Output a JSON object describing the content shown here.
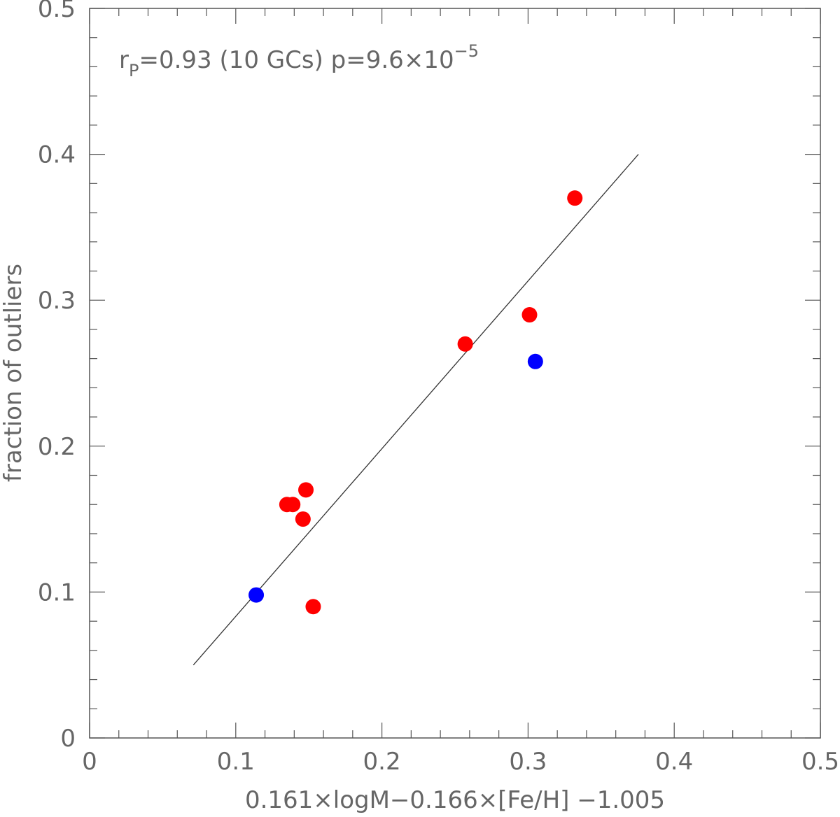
{
  "chart_data": {
    "type": "scatter",
    "xlabel": "0.161×logM−0.166×[Fe/H] −1.005",
    "ylabel": "fraction of outliers",
    "xlim": [
      0,
      0.5
    ],
    "ylim": [
      0,
      0.5
    ],
    "xticks": [
      "0",
      "0.1",
      "0.2",
      "0.3",
      "0.4",
      "0.5"
    ],
    "yticks": [
      "0",
      "0.1",
      "0.2",
      "0.3",
      "0.4",
      "0.5"
    ],
    "grid": false,
    "annotation": {
      "r_main": "r",
      "r_sub": "P",
      "text": "=0.93 (10 GCs) p=9.6×10",
      "exp": "−5"
    },
    "series": [
      {
        "color": "#ff0000",
        "points": [
          [
            0.153,
            0.09
          ],
          [
            0.146,
            0.15
          ],
          [
            0.135,
            0.16
          ],
          [
            0.139,
            0.16
          ],
          [
            0.148,
            0.17
          ],
          [
            0.257,
            0.27
          ],
          [
            0.301,
            0.29
          ],
          [
            0.332,
            0.37
          ]
        ]
      },
      {
        "color": "#0000ff",
        "points": [
          [
            0.114,
            0.098
          ],
          [
            0.305,
            0.258
          ]
        ]
      }
    ],
    "fit_line": {
      "color": "#333333",
      "from": [
        0.071,
        0.05
      ],
      "to": [
        0.3755,
        0.4
      ]
    }
  }
}
